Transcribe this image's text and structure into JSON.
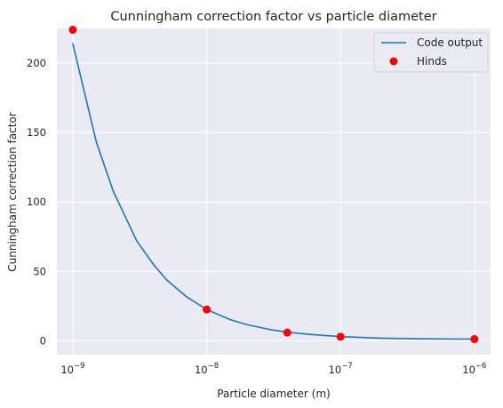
{
  "chart_data": {
    "type": "line",
    "title": "Cunningham correction factor vs particle diameter",
    "xlabel": "Particle diameter (m)",
    "ylabel": "Cunningham correction factor",
    "xscale": "log",
    "xlim": [
      7.6e-10,
      1.32e-06
    ],
    "ylim": [
      -10,
      225
    ],
    "xticks": [
      {
        "value": 1e-09,
        "base": "10",
        "exp": "−9"
      },
      {
        "value": 1e-08,
        "base": "10",
        "exp": "−8"
      },
      {
        "value": 1e-07,
        "base": "10",
        "exp": "−7"
      },
      {
        "value": 1e-06,
        "base": "10",
        "exp": "−6"
      }
    ],
    "yticks": [
      {
        "value": 0,
        "label": "0"
      },
      {
        "value": 50,
        "label": "50"
      },
      {
        "value": 100,
        "label": "100"
      },
      {
        "value": 150,
        "label": "150"
      },
      {
        "value": 200,
        "label": "200"
      }
    ],
    "grid": true,
    "legend_position": "top-right",
    "background_color": "#eaeaf2",
    "series": [
      {
        "name": "Code output",
        "kind": "line",
        "color": "#1f77b4",
        "x": [
          1e-09,
          1.5e-09,
          2e-09,
          3e-09,
          4e-09,
          5e-09,
          7e-09,
          1e-08,
          1.5e-08,
          2e-08,
          3e-08,
          4e-08,
          6e-08,
          1e-07,
          2e-07,
          4e-07,
          1e-06
        ],
        "y": [
          214,
          143,
          108,
          72,
          55,
          44,
          32,
          22.5,
          15.2,
          11.6,
          8.0,
          6.2,
          4.5,
          3.0,
          1.9,
          1.4,
          1.2
        ]
      },
      {
        "name": "Hinds",
        "kind": "scatter",
        "color": "#ff0000",
        "x": [
          1e-09,
          1e-08,
          4e-08,
          1e-07,
          1e-06
        ],
        "y": [
          224,
          22.5,
          5.9,
          2.9,
          1.2
        ]
      }
    ]
  }
}
